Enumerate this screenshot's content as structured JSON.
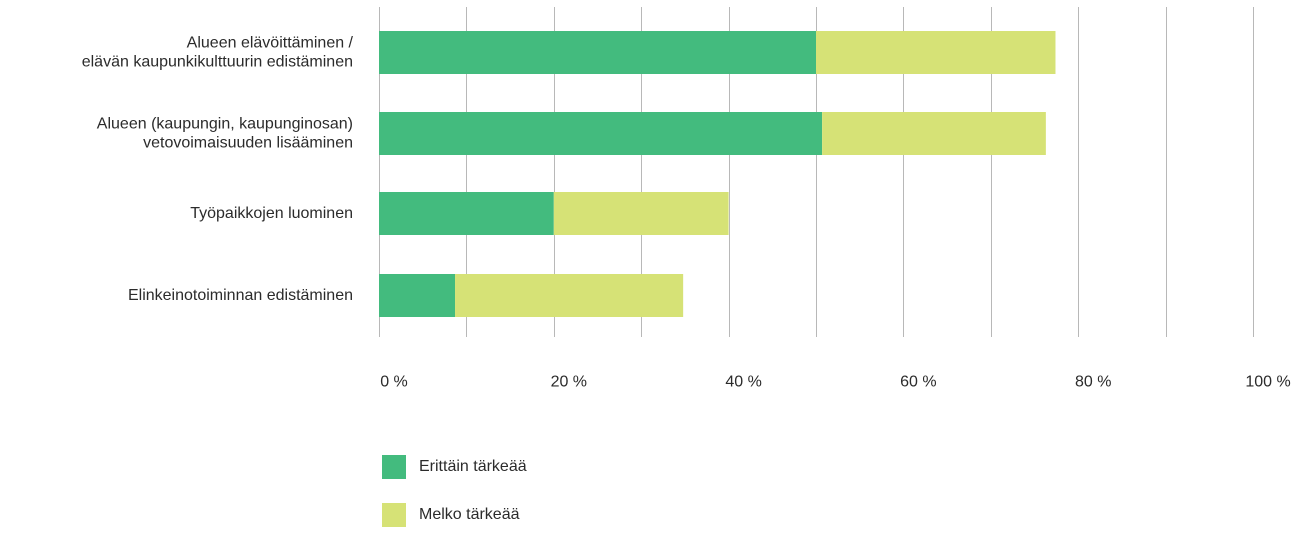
{
  "chart_data": {
    "type": "bar",
    "orientation": "horizontal",
    "stacked": true,
    "categories": [
      [
        "Alueen elävöittäminen /",
        "elävän kaupunkikulttuurin edistäminen"
      ],
      [
        "Alueen (kaupungin, kaupunginosan)",
        "vetovoimaisuuden lisääminen"
      ],
      [
        "Työpaikkojen luominen"
      ],
      [
        "Elinkeinotoiminnan edistäminen"
      ]
    ],
    "series": [
      {
        "name": "Erittäin tärkeää",
        "color": "#43bb7e",
        "values": [
          50,
          50.7,
          20,
          8.7
        ]
      },
      {
        "name": "Melko tärkeää",
        "color": "#d6e276",
        "values": [
          27.4,
          25.6,
          20,
          26.1
        ]
      }
    ],
    "x_ticks": [
      "0 %",
      "20 %",
      "40 %",
      "60 %",
      "80 %",
      "100 %"
    ],
    "xlim": [
      0,
      100
    ],
    "grid": true,
    "legend_position": "bottom-left",
    "title": "",
    "xlabel": "",
    "ylabel": ""
  }
}
